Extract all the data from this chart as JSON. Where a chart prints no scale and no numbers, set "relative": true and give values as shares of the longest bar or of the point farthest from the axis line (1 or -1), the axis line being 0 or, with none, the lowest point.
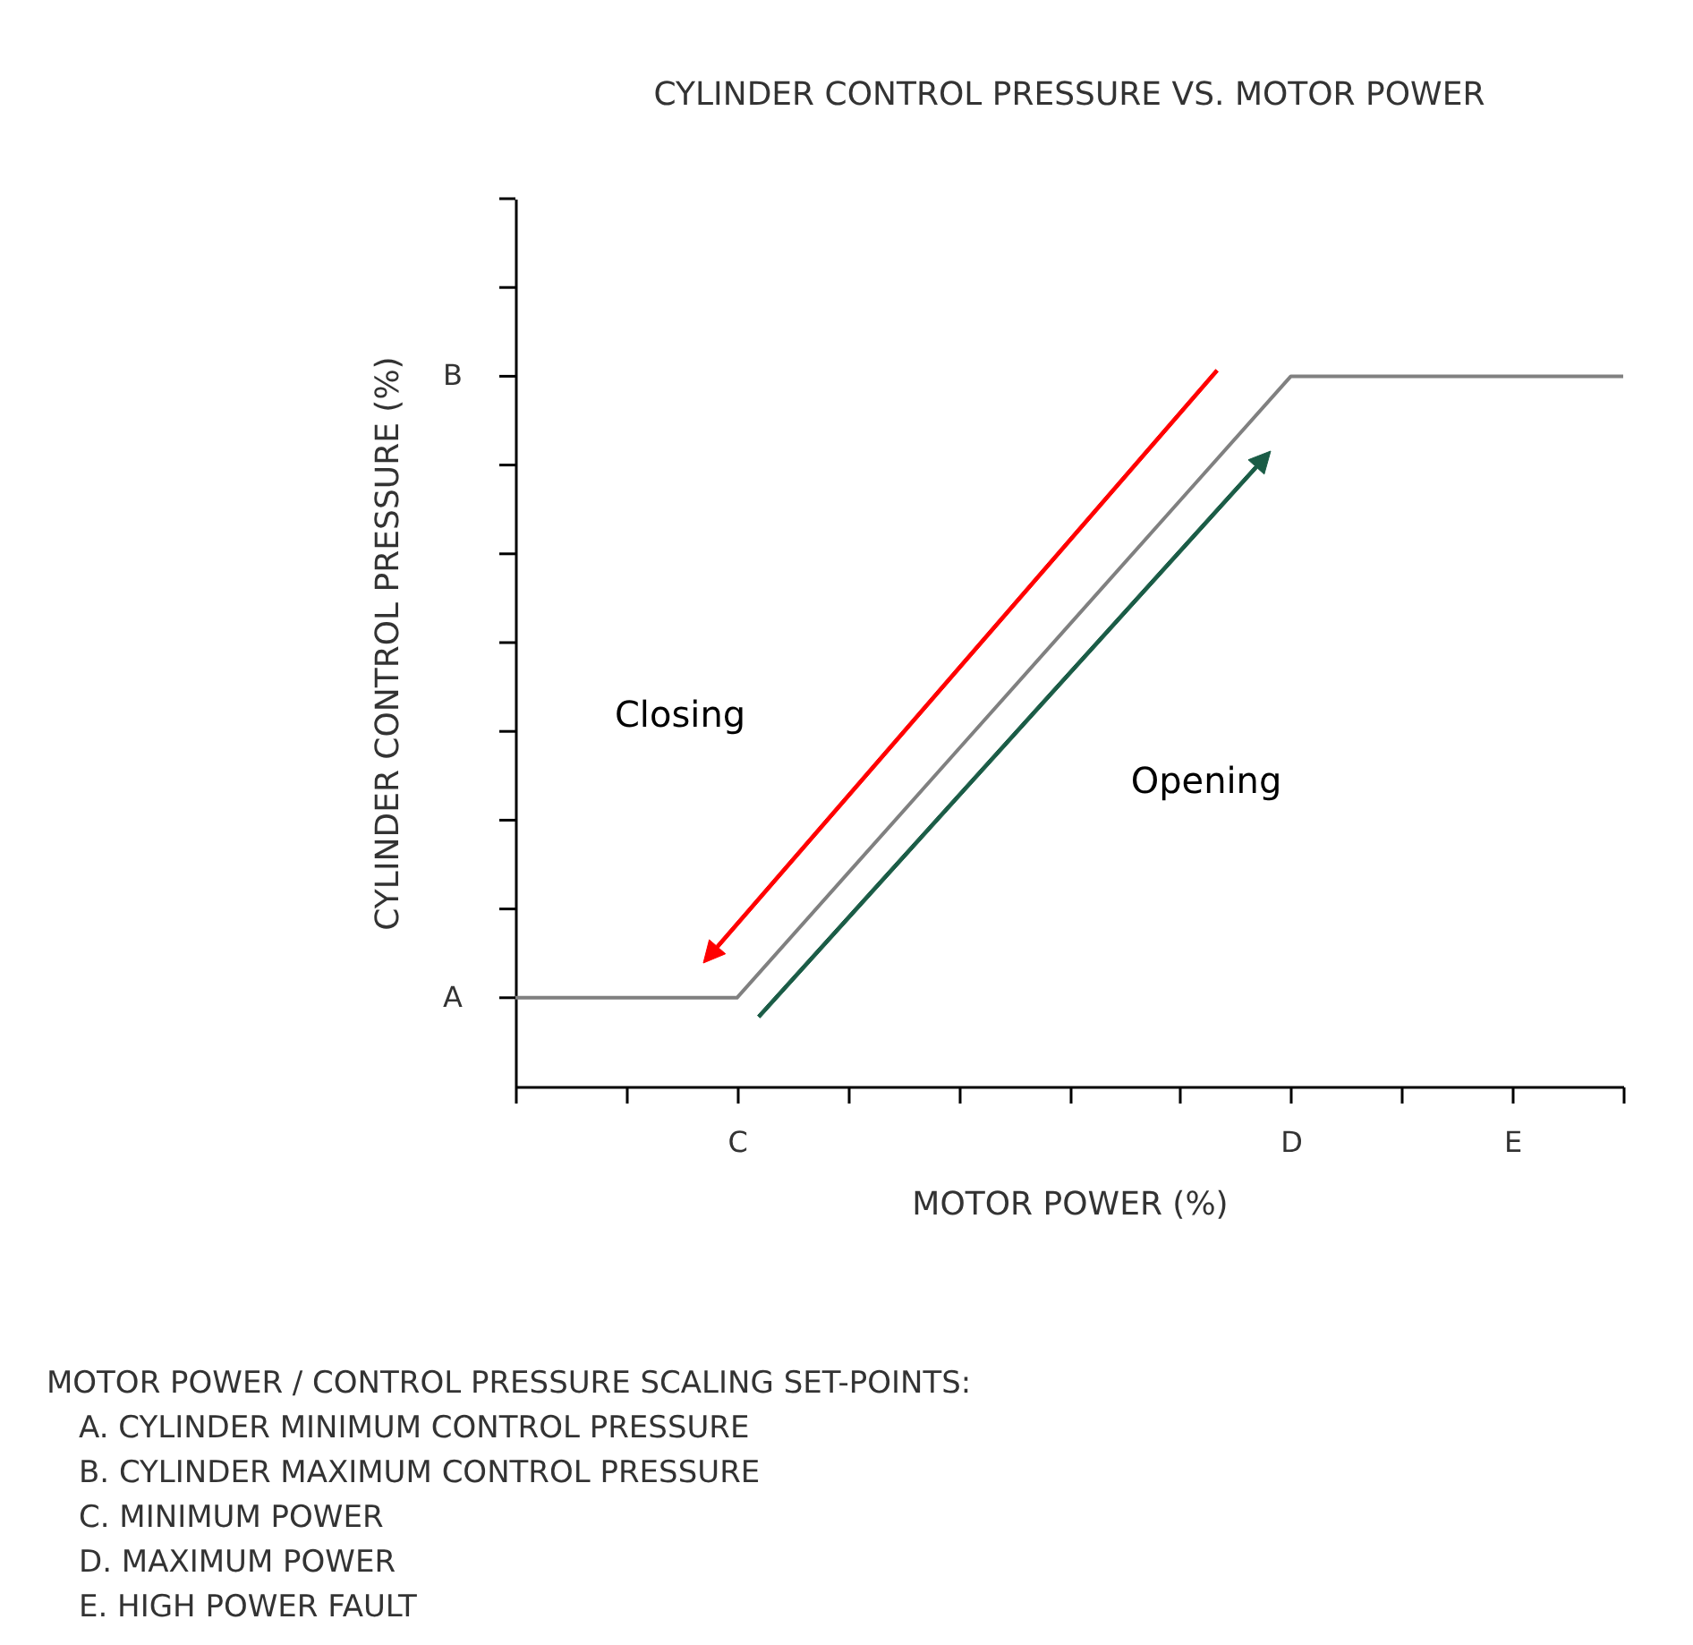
{
  "chart_data": {
    "type": "line",
    "relative": true,
    "title": "CYLINDER CONTROL PRESSURE VS. MOTOR POWER",
    "xlabel": "MOTOR POWER (%)",
    "ylabel": "CYLINDER CONTROL PRESSURE (%)",
    "categories": [
      null,
      null,
      "C",
      null,
      null,
      null,
      null,
      "D",
      null,
      "E",
      null
    ],
    "series": [
      {
        "color": "#808080",
        "values": [
          0.125,
          0.125,
          0.125,
          0.3,
          0.475,
          0.65,
          0.825,
          1,
          1,
          1,
          1
        ]
      }
    ],
    "annotations": [
      "A",
      "B",
      "Closing",
      "Opening",
      "MOTOR POWER / CONTROL PRESSURE SCALING SET-POINTS:",
      "A.  CYLINDER MINIMUM CONTROL PRESSURE",
      "B.  CYLINDER MAXIMUM CONTROL PRESSURE",
      "C.  MINIMUM POWER",
      "D.  MAXIMUM POWER",
      "E.  HIGH POWER FAULT"
    ],
    "grid": false,
    "marker": "none",
    "line_style": "solid"
  }
}
